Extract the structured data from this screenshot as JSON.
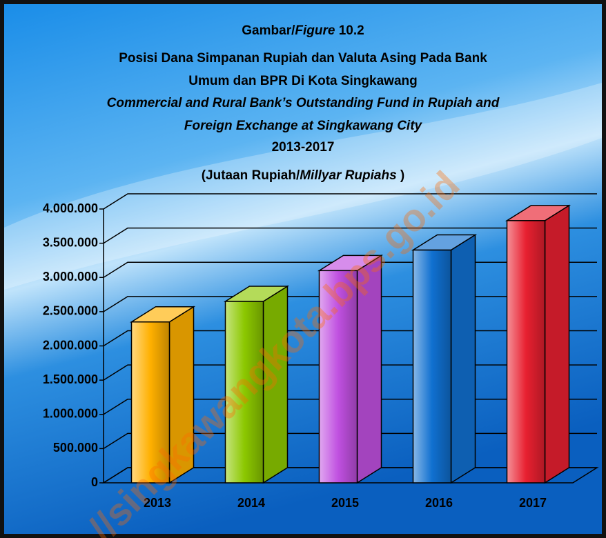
{
  "chart_data": {
    "type": "bar3d",
    "title_lines": [
      [
        {
          "text": "Gambar/",
          "italic": false
        },
        {
          "text": "Figure",
          "italic": true
        },
        {
          "text": " 10.2",
          "italic": false
        }
      ],
      [
        {
          "text": "Posisi Dana Simpanan Rupiah dan Valuta Asing Pada Bank",
          "italic": false
        }
      ],
      [
        {
          "text": "Umum dan BPR Di Kota Singkawang",
          "italic": false
        }
      ],
      [
        {
          "text": "Commercial and Rural  Bank’s Outstanding Fund in Rupiah and",
          "italic": true
        }
      ],
      [
        {
          "text": "Foreign Exchange at Singkawang City",
          "italic": true
        }
      ],
      [
        {
          "text": "2013-2017",
          "italic": false
        }
      ],
      [
        {
          "text": "(Jutaan Rupiah/",
          "italic": false
        },
        {
          "text": "Millyar Rupiahs",
          "italic": true
        },
        {
          "text": " )",
          "italic": false
        }
      ]
    ],
    "categories": [
      "2013",
      "2014",
      "2015",
      "2016",
      "2017"
    ],
    "values": [
      2350000,
      2650000,
      3100000,
      3400000,
      3830000
    ],
    "colors": [
      "#ffb000",
      "#8cc800",
      "#c050e0",
      "#1070d0",
      "#e82030"
    ],
    "ylim": [
      0,
      4000000
    ],
    "yticks": [
      0,
      {
        "value": 500000,
        "label": "500.000"
      },
      {
        "value": 1000000,
        "label": "1.000.000"
      },
      {
        "value": 1500000,
        "label": "1.500.000"
      },
      {
        "value": 2000000,
        "label": "2.000.000"
      },
      {
        "value": 2500000,
        "label": "2.500.000"
      },
      {
        "value": 3000000,
        "label": "3.000.000"
      },
      {
        "value": 3500000,
        "label": "3.500.000"
      },
      {
        "value": 4000000,
        "label": "4.000.000"
      }
    ],
    "grid": true,
    "watermark": "//singkawangkota.bps.go.id"
  }
}
